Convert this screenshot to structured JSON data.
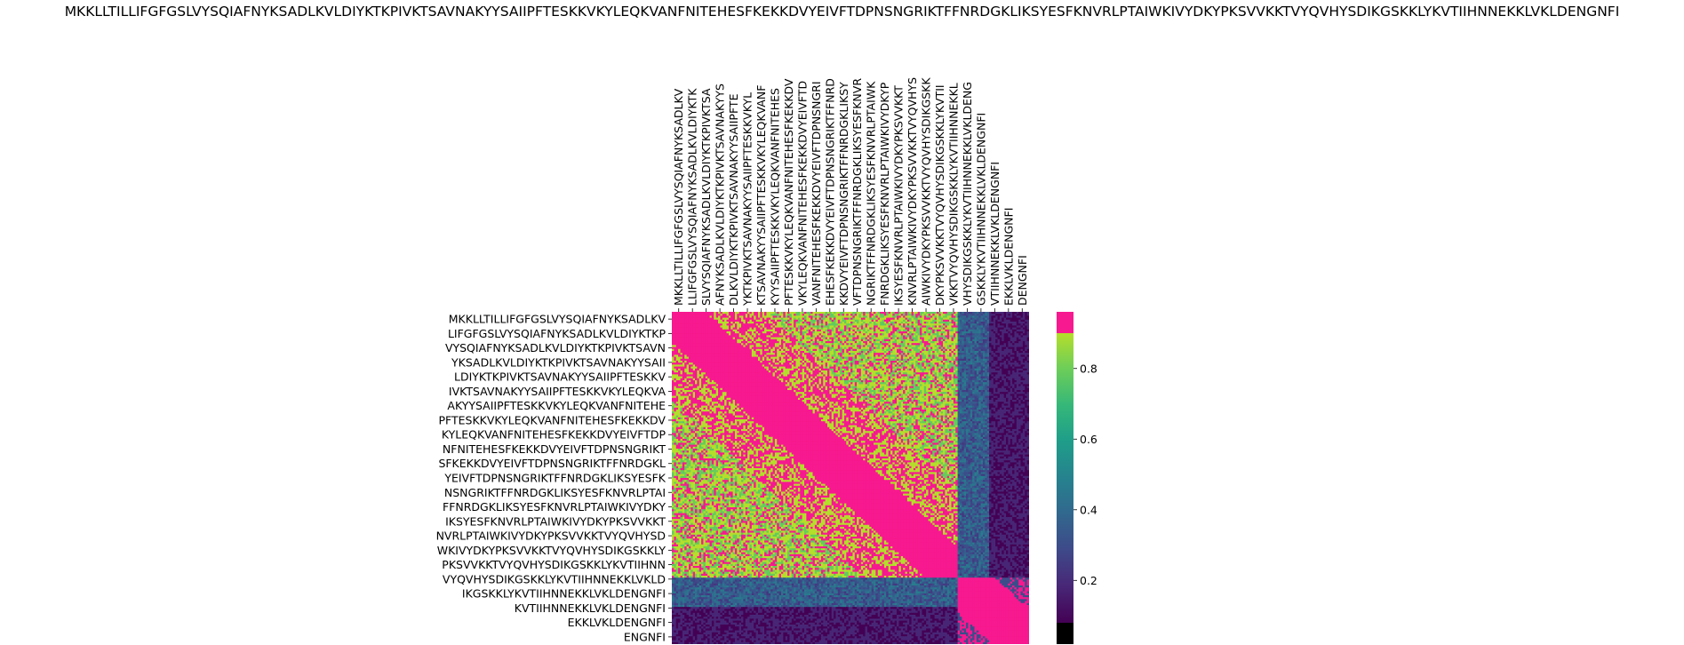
{
  "chart_data": {
    "type": "heatmap",
    "title": "MKKLLTILLIFGFGSLVYSQIAFNYKSADLKVLDIYKTKPIVKTSAVNAKYYSAIIPFTESKKVKYLEQKVANFNITEHESFKEKKDVYEIVFTDPNSNGRIKTFFNRDGKLIKSYESFKNVRLPTAIWKIVYDKYPKSVVKKTVYQVHYSDIKGSKKLYKVTIIHNNEKKLVKLDENGNFI",
    "x_tick_labels": [
      "MKKLLTILLIFGFGSLVYSQIAFNYKSADLKV",
      "LLIFGFGSLVYSQIAFNYKSADLKVLDIYKTK",
      "SLVYSQIAFNYKSADLKVLDIYKTKPIVKTSA",
      "AFNYKSADLKVLDIYKTKPIVKTSAVNAKYYS",
      "DLKVLDIYKTKPIVKTSAVNAKYYSAIIPFTE",
      "YKTKPIVKTSAVNAKYYSAIIPFTESKKVKYL",
      "KTSAVNAKYYSAIIPFTESKKVKYLEQKVANF",
      "KYYSAIIPFTESKKVKYLEQKVANFNITEHES",
      "PFTESKKVKYLEQKVANFNITEHESFKEKKDV",
      "VKYLEQKVANFNITEHESFKEKKDVYEIVFTD",
      "VANFNITEHESFKEKKDVYEIVFTDPNSNGRI",
      "EHESFKEKKDVYEIVFTDPNSNGRIKTFFNRD",
      "KKDVYEIVFTDPNSNGRIKTFFNRDGKLIKSY",
      "VFTDPNSNGRIKTFFNRDGKLIKSYESFKNVR",
      "NGRIKTFFNRDGKLIKSYESFKNVRLPTAIWK",
      "FNRDGKLIKSYESFKNVRLPTAIWKIVYDKYP",
      "IKSYESFKNVRLPTAIWKIVYDKYPKSVVKKT",
      "KNVRLPTAIWKIVYDKYPKSVVKKTVYQVHYS",
      "AIWKIVYDKYPKSVVKKTVYQVHYSDIKGSKK",
      "DKYPKSVVKKTVYQVHYSDIKGSKKLYKVTII",
      "VKKTVYQVHYSDIKGSKKLYKVTIIHNNEKKL",
      "VHYSDIKGSKKLYKVTIIHNNEKKLVKLDENG",
      "GSKKLYKVTIIHNNEKKLVKLDENGNFI",
      "VTIIHNNEKKLVKLDENGNFI",
      "EKKLVKLDENGNFI",
      "DENGNFI"
    ],
    "y_tick_labels": [
      "MKKLLTILLIFGFGSLVYSQIAFNYKSADLKV",
      "LIFGFGSLVYSQIAFNYKSADLKVLDIYKTKP",
      "VYSQIAFNYKSADLKVLDIYKTKPIVKTSAVN",
      "YKSADLKVLDIYKTKPIVKTSAVNAKYYSAII",
      "LDIYKTKPIVKTSAVNAKYYSAIIPFTESKKV",
      "IVKTSAVNAKYYSAIIPFTESKKVKYLEQKVA",
      "AKYYSAIIPFTESKKVKYLEQKVANFNITEHE",
      "PFTESKKVKYLEQKVANFNITEHESFKEKKDV",
      "KYLEQKVANFNITEHESFKEKKDVYEIVFTDP",
      "NFNITEHESFKEKKDVYEIVFTDPNSNGRIKT",
      "SFKEKKDVYEIVFTDPNSNGRIKTFFNRDGKL",
      "YEIVFTDPNSNGRIKTFFNRDGKLIKSYESFK",
      "NSNGRIKTFFNRDGKLIKSYESFKNVRLPTAI",
      "FFNRDGKLIKSYESFKNVRLPTAIWKIVYDKY",
      "IKSYESFKNVRLPTAIWKIVYDKYPKSVVKKT",
      "NVRLPTAIWKIVYDKYPKSVVKKTVYQVHYSD",
      "WKIVYDKYPKSVVKKTVYQVHYSDIKGSKKLY",
      "PKSVVKKTVYQVHYSDIKGSKKLYKVTIIHNN",
      "VYQVHYSDIKGSKKLYKVTIIHNNEKKLVKLD",
      "IKGSKKLYKVTIIHNNEKKLVKLDENGNFI",
      "KVTIIHNNEKKLVKLDENGNFI",
      "EKKLVKLDENGNFI",
      "ENGNFI"
    ],
    "colormap": "viridis",
    "over_color": "#f7198f",
    "under_color": "#000000",
    "colorbar_ticks": [
      0.2,
      0.4,
      0.6,
      0.8
    ],
    "vmin": 0.05,
    "vmax": 0.97,
    "blocks": [
      {
        "name": "main-segment",
        "row_range": [
          0,
          19
        ],
        "col_range": [
          0,
          21
        ]
      },
      {
        "name": "c-terminal-segment",
        "row_range": [
          20,
          22
        ],
        "col_range": [
          22,
          25
        ]
      }
    ],
    "values_per_row": {
      "main_segment_self": 0.99,
      "main_segment_near": 0.9,
      "main_segment_far": 0.8,
      "cross_block": 0.35,
      "cross_block_edge": 0.05
    }
  }
}
